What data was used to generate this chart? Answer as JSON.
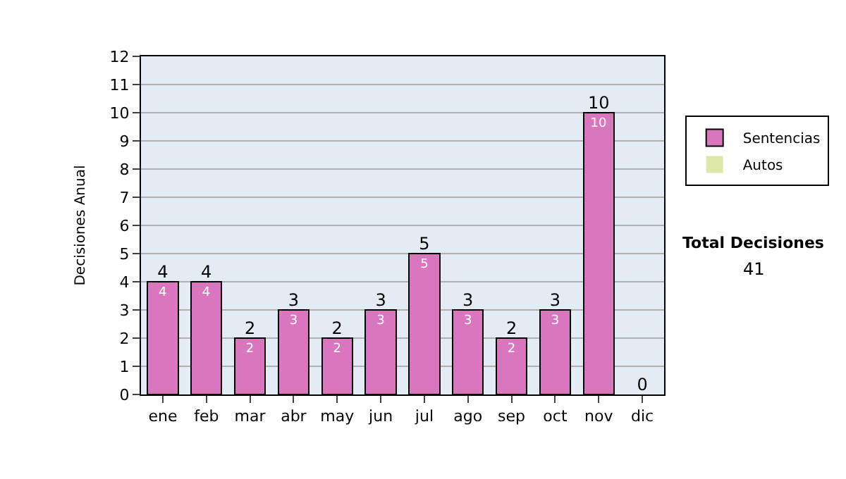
{
  "chart_data": {
    "type": "bar",
    "stacked": true,
    "ylabel": "Decisiones Anual",
    "categories": [
      "ene",
      "feb",
      "mar",
      "abr",
      "may",
      "jun",
      "jul",
      "ago",
      "sep",
      "oct",
      "nov",
      "dic"
    ],
    "series": [
      {
        "name": "Sentencias",
        "color": "#d877bd",
        "values": [
          4,
          4,
          2,
          3,
          2,
          3,
          5,
          3,
          2,
          3,
          10,
          0
        ],
        "value_labels": [
          "4",
          "4",
          "2",
          "3",
          "2",
          "3",
          "5",
          "3",
          "2",
          "3",
          "10",
          null
        ]
      },
      {
        "name": "Autos",
        "color": "#dde8a8",
        "values": [
          0,
          0,
          0,
          0,
          0,
          0,
          0,
          0,
          0,
          0,
          0,
          0
        ]
      }
    ],
    "totals": [
      "4",
      "4",
      "2",
      "3",
      "2",
      "3",
      "5",
      "3",
      "2",
      "3",
      "10",
      "0"
    ],
    "ylim": [
      0,
      12
    ],
    "yticks": [
      0,
      1,
      2,
      3,
      4,
      5,
      6,
      7,
      8,
      9,
      10,
      11,
      12
    ],
    "grid": "y",
    "legend": "right",
    "annotations": [
      "Total Decisiones",
      "41"
    ]
  }
}
